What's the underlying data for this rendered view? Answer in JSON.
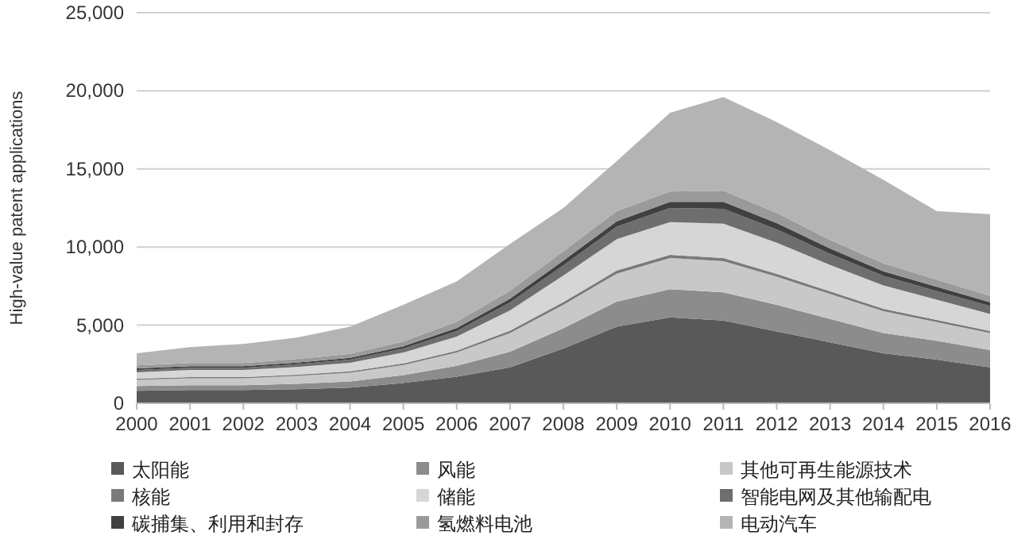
{
  "chart_data": {
    "type": "area",
    "stacked": true,
    "ylabel": "High-value patent applications",
    "categories": [
      "2000",
      "2001",
      "2002",
      "2003",
      "2004",
      "2005",
      "2006",
      "2007",
      "2008",
      "2009",
      "2010",
      "2011",
      "2012",
      "2013",
      "2014",
      "2015",
      "2016"
    ],
    "ylim": [
      0,
      25000
    ],
    "yticks": [
      0,
      {
        "value": 5000,
        "label": "5,000"
      },
      {
        "value": 10000,
        "label": "10,000"
      },
      {
        "value": 15000,
        "label": "15,000"
      },
      {
        "value": 20000,
        "label": "20,000"
      },
      {
        "value": 25000,
        "label": "25,000"
      }
    ],
    "grid": "y",
    "legend": "bottom",
    "series": [
      {
        "name": "太阳能",
        "color": "#595959",
        "values": [
          800,
          850,
          850,
          900,
          1000,
          1300,
          1700,
          2300,
          3500,
          4900,
          5500,
          5300,
          4600,
          3900,
          3200,
          2800,
          2300
        ]
      },
      {
        "name": "风能",
        "color": "#8c8c8c",
        "values": [
          300,
          300,
          300,
          350,
          400,
          500,
          700,
          1000,
          1300,
          1600,
          1800,
          1800,
          1700,
          1500,
          1300,
          1200,
          1100
        ]
      },
      {
        "name": "其他可再生能源技术",
        "color": "#c8c8c8",
        "values": [
          400,
          450,
          450,
          500,
          550,
          650,
          850,
          1200,
          1500,
          1800,
          2000,
          2000,
          1800,
          1600,
          1400,
          1200,
          1100
        ]
      },
      {
        "name": "核能",
        "color": "#7a7a7a",
        "values": [
          80,
          80,
          80,
          80,
          90,
          100,
          120,
          150,
          180,
          200,
          200,
          200,
          180,
          160,
          150,
          130,
          120
        ]
      },
      {
        "name": "储能",
        "color": "#d6d6d6",
        "values": [
          400,
          450,
          450,
          500,
          550,
          700,
          900,
          1300,
          1700,
          2000,
          2100,
          2200,
          2000,
          1700,
          1500,
          1300,
          1100
        ]
      },
      {
        "name": "智能电网及其他输配电",
        "color": "#6e6e6e",
        "values": [
          150,
          150,
          150,
          170,
          200,
          250,
          350,
          500,
          650,
          800,
          900,
          950,
          850,
          700,
          600,
          550,
          500
        ]
      },
      {
        "name": "碳捕集、利用和封存",
        "color": "#404040",
        "values": [
          100,
          100,
          100,
          110,
          120,
          150,
          200,
          250,
          300,
          350,
          400,
          450,
          400,
          350,
          300,
          280,
          250
        ]
      },
      {
        "name": "氢燃料电池",
        "color": "#9a9a9a",
        "values": [
          200,
          200,
          200,
          220,
          250,
          300,
          400,
          500,
          600,
          650,
          650,
          700,
          650,
          550,
          500,
          450,
          400
        ]
      },
      {
        "name": "电动汽车",
        "color": "#b4b4b4",
        "values": [
          770,
          1020,
          1220,
          1370,
          1740,
          2350,
          2580,
          3000,
          2770,
          3200,
          5050,
          6000,
          5820,
          5740,
          5350,
          4390,
          5230
        ]
      }
    ]
  }
}
